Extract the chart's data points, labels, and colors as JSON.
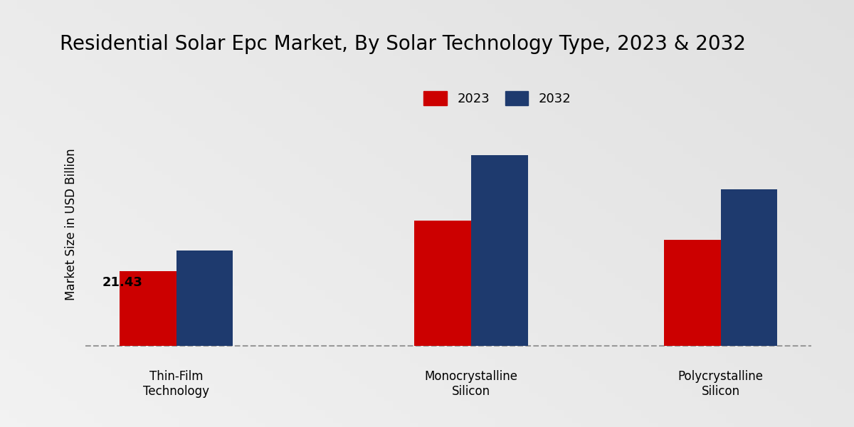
{
  "title": "Residential Solar Epc Market, By Solar Technology Type, 2023 & 2032",
  "ylabel": "Market Size in USD Billion",
  "categories": [
    "Thin-Film\nTechnology",
    "Monocrystalline\nSilicon",
    "Polycrystalline\nSilicon"
  ],
  "values_2023": [
    21.43,
    36.0,
    30.5
  ],
  "values_2032": [
    27.5,
    55.0,
    45.0
  ],
  "bar_color_2023": "#cc0000",
  "bar_color_2032": "#1e3a6e",
  "annotation_value": "21.43",
  "annotation_category_idx": 0,
  "background_color_light": "#f0f0f0",
  "background_color_dark": "#d0d0d0",
  "bar_width": 0.25,
  "legend_labels": [
    "2023",
    "2032"
  ],
  "title_fontsize": 20,
  "label_fontsize": 12,
  "tick_fontsize": 12,
  "annotation_fontsize": 13,
  "ylim_max": 75,
  "red_bar_color": "#cc0000",
  "dashed_line_color": "#999999",
  "x_positions": [
    0.5,
    1.8,
    2.9
  ]
}
